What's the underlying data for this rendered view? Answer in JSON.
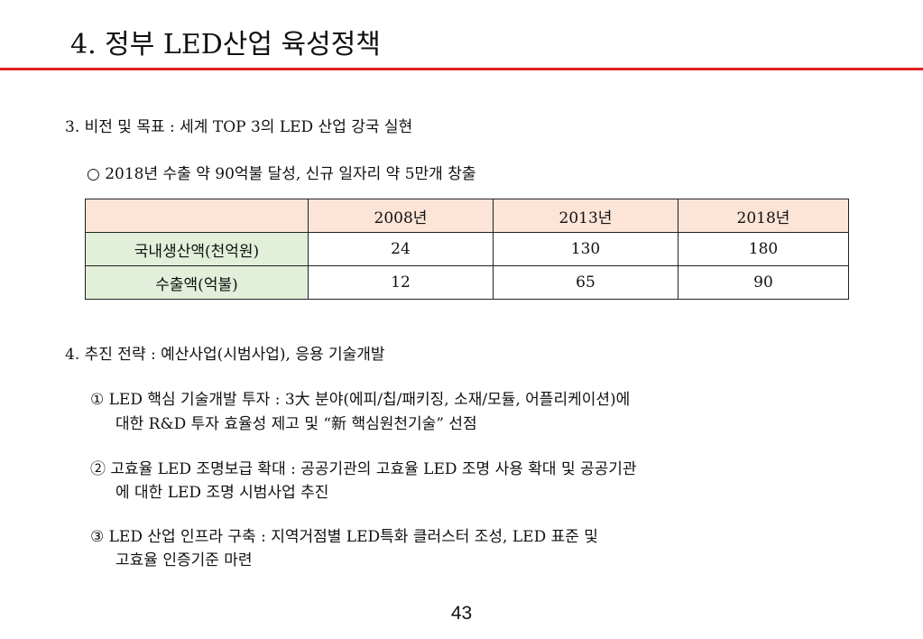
{
  "title": "4. 정부 LED산업 육성정책",
  "section3": {
    "heading": "3. 비전 및 목표 : 세계 TOP 3의 LED 산업 강국 실현",
    "bullet": "○  2018년 수출 약 90억불 달성, 신규 일자리 약 5만개 창출"
  },
  "table": {
    "columns": [
      "",
      "2008년",
      "2013년",
      "2018년"
    ],
    "rows": [
      {
        "label": "국내생산액(천억원)",
        "values": [
          "24",
          "130",
          "180"
        ]
      },
      {
        "label": "수출액(억불)",
        "values": [
          "12",
          "65",
          "90"
        ]
      }
    ],
    "header_color": "#fce4d6",
    "label_color": "#e2efd9"
  },
  "section4": {
    "heading": "4. 추진 전략 : 예산사업(시범사업), 응용 기술개발",
    "items": [
      {
        "line1": "① LED 핵심 기술개발 투자 : 3大 분야(에피/칩/패키징, 소재/모듈, 어플리케이션)에",
        "line2": "대한 R&D 투자 효율성 제고 및 “新 핵심원천기술” 선점"
      },
      {
        "line1": "② 고효율 LED 조명보급 확대 : 공공기관의 고효율 LED 조명 사용 확대 및 공공기관",
        "line2": "에 대한 LED 조명 시범사업 추진"
      },
      {
        "line1": "③ LED 산업 인프라 구축 : 지역거점별 LED특화 클러스터 조성, LED 표준 및",
        "line2": "고효율 인증기준 마련"
      }
    ]
  },
  "page_number": "43",
  "accent_color": "#e02020"
}
